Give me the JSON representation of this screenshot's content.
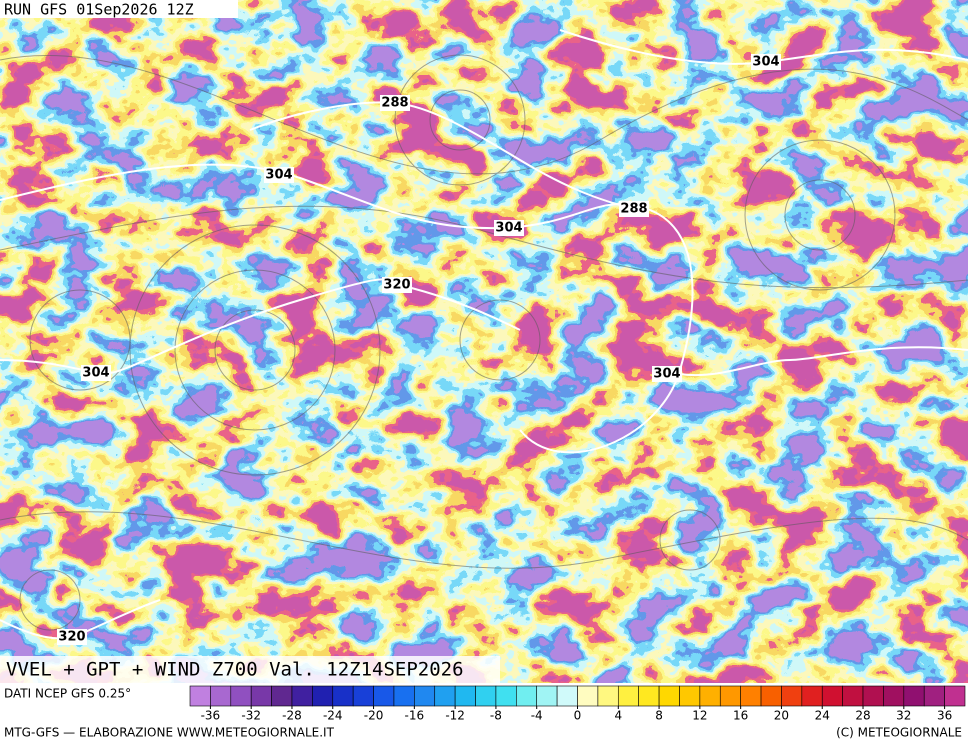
{
  "header": {
    "run": "RUN GFS 01Sep2026 12Z"
  },
  "map": {
    "contour_labels": [
      288,
      304,
      304,
      288,
      304,
      320,
      304,
      304,
      320
    ]
  },
  "footer": {
    "title": "VVEL + GPT + WIND Z700 Val. 12Z14SEP2026",
    "source": "DATI NCEP GFS 0.25°",
    "credit_left": "MTG-GFS — ELABORAZIONE WWW.METEOGIORNALE.IT",
    "credit_right": "(C) METEOGIORNALE"
  },
  "colorbar": {
    "range": [
      -38,
      38
    ],
    "ticks": [
      -36,
      -32,
      -28,
      -24,
      -20,
      -16,
      -12,
      -8,
      -4,
      0,
      4,
      8,
      12,
      16,
      20,
      24,
      28,
      32,
      36
    ],
    "colors": [
      "#c080e0",
      "#a868d0",
      "#9050c0",
      "#7838a8",
      "#602890",
      "#4020a0",
      "#2020b0",
      "#1830c8",
      "#1840d8",
      "#1858e8",
      "#1870f0",
      "#2088f0",
      "#20a0f0",
      "#20b8f0",
      "#30d0f0",
      "#40e0f0",
      "#70eef0",
      "#a0f4f4",
      "#d0fafa",
      "#fffcc0",
      "#fff880",
      "#fff040",
      "#ffe820",
      "#ffd800",
      "#ffc800",
      "#ffb000",
      "#ff9800",
      "#ff8000",
      "#f86000",
      "#f04010",
      "#e02020",
      "#d01030",
      "#c01040",
      "#b01050",
      "#a01060",
      "#901070",
      "#a02080",
      "#c03090"
    ]
  }
}
